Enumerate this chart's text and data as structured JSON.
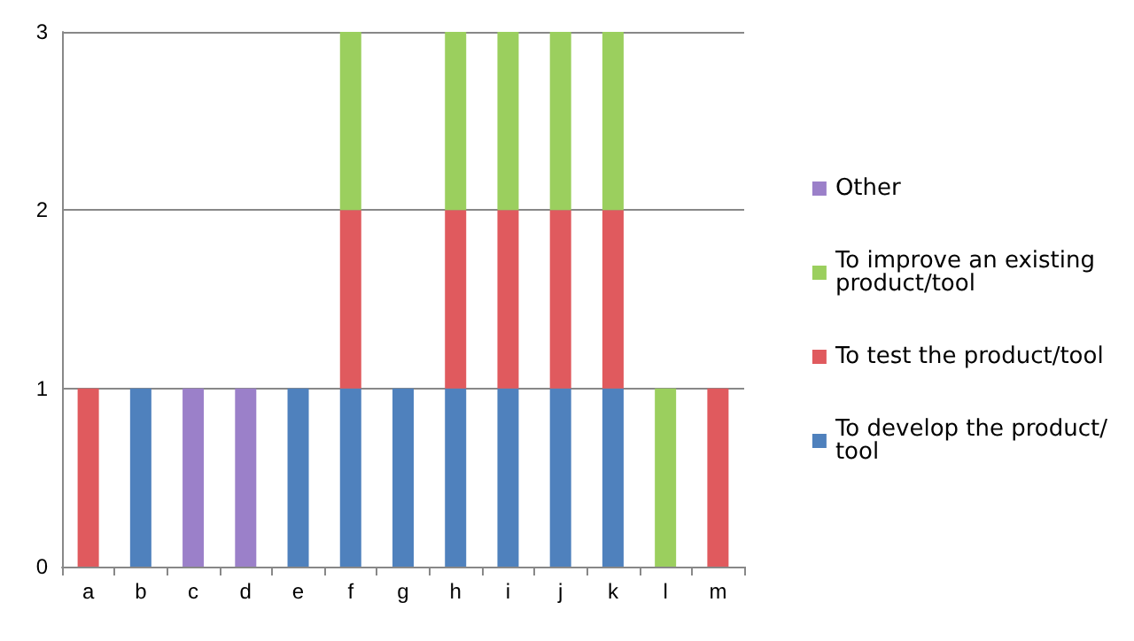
{
  "chart_data": {
    "type": "bar",
    "stacked": true,
    "categories": [
      "a",
      "b",
      "c",
      "d",
      "e",
      "f",
      "g",
      "h",
      "i",
      "j",
      "k",
      "l",
      "m"
    ],
    "series": [
      {
        "name": "To develop the product/tool",
        "color": "#4f81bd",
        "values": [
          0,
          1,
          0,
          0,
          1,
          1,
          1,
          1,
          1,
          1,
          1,
          0,
          0
        ]
      },
      {
        "name": "To test the product/tool",
        "color": "#e05a5e",
        "values": [
          1,
          0,
          0,
          0,
          0,
          1,
          0,
          1,
          1,
          1,
          1,
          0,
          1
        ]
      },
      {
        "name": "To improve an existing product/tool",
        "color": "#9bcf5e",
        "values": [
          0,
          0,
          0,
          0,
          0,
          1,
          0,
          1,
          1,
          1,
          1,
          1,
          0
        ]
      },
      {
        "name": "Other",
        "color": "#9b80c9",
        "values": [
          0,
          0,
          1,
          1,
          0,
          0,
          0,
          0,
          0,
          0,
          0,
          0,
          0
        ]
      }
    ],
    "ylim": [
      0,
      3
    ],
    "yticks": [
      0,
      1,
      2,
      3
    ],
    "grid": "y",
    "legend": "right"
  }
}
